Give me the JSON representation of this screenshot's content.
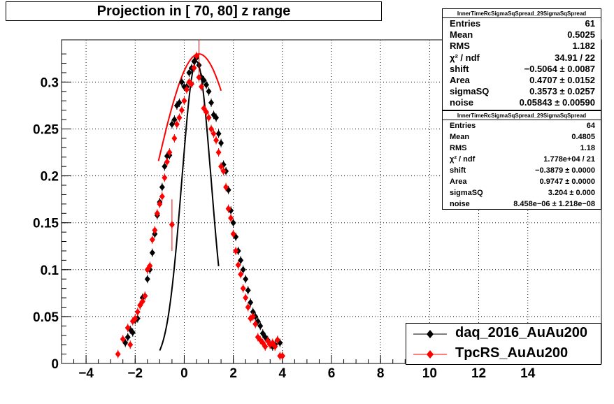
{
  "chart_data": {
    "type": "scatter",
    "title": "Projection in [  70,  80] z range",
    "xlim": [
      -5,
      17
    ],
    "ylim": [
      0,
      0.345
    ],
    "x_ticks": [
      -4,
      -2,
      0,
      2,
      4,
      6,
      8,
      10,
      12,
      14
    ],
    "x_tick_labels": [
      "−4",
      "−2",
      "0",
      "2",
      "4",
      "6",
      "8",
      "10",
      "12",
      "14"
    ],
    "y_ticks": [
      0,
      0.05,
      0.1,
      0.15,
      0.2,
      0.25,
      0.3
    ],
    "y_tick_labels": [
      "0",
      "0.05",
      "0.1",
      "0.15",
      "0.2",
      "0.25",
      "0.3"
    ],
    "grid": true,
    "legend_position": "bottom-right",
    "series": [
      {
        "name": "daq_2016_AuAu200",
        "color": "#000000",
        "marker": "diamond",
        "x": [
          -2.4,
          -2.3,
          -2.2,
          -2.1,
          -2.0,
          -1.9,
          -1.8,
          -1.7,
          -1.6,
          -1.5,
          -1.4,
          -1.3,
          -1.2,
          -1.1,
          -1.0,
          -0.9,
          -0.8,
          -0.7,
          -0.6,
          -0.5,
          -0.4,
          -0.3,
          -0.2,
          -0.1,
          0.0,
          0.1,
          0.2,
          0.3,
          0.4,
          0.5,
          0.6,
          0.7,
          0.8,
          0.9,
          1.0,
          1.1,
          1.2,
          1.3,
          1.4,
          1.5,
          1.6,
          1.7,
          1.8,
          1.9,
          2.0,
          2.1,
          2.2,
          2.3,
          2.4,
          2.5,
          2.6,
          2.7,
          2.8,
          2.9,
          3.0,
          3.1,
          3.2,
          3.3,
          3.4,
          3.5,
          3.6,
          3.7,
          3.8,
          3.9,
          4.0
        ],
        "y": [
          0.022,
          0.028,
          0.036,
          0.033,
          0.046,
          0.048,
          0.062,
          0.07,
          0.072,
          0.09,
          0.1,
          0.118,
          0.138,
          0.158,
          0.172,
          0.188,
          0.21,
          0.221,
          0.222,
          0.255,
          0.26,
          0.275,
          0.278,
          0.3,
          0.295,
          0.295,
          0.31,
          0.315,
          0.322,
          0.326,
          0.318,
          0.305,
          0.302,
          0.297,
          0.29,
          0.278,
          0.265,
          0.262,
          0.245,
          0.235,
          0.212,
          0.205,
          0.185,
          0.163,
          0.15,
          0.135,
          0.12,
          0.11,
          0.1,
          0.09,
          0.078,
          0.065,
          0.055,
          0.05,
          0.045,
          0.04,
          0.032,
          0.028,
          0.025,
          0.02,
          0.018,
          0.02,
          0.025,
          0.022,
          0.008
        ],
        "fit_curve": {
          "shift": -0.5064,
          "area": 0.4707,
          "sigmaSQ": 0.3573,
          "noise": 0.05843,
          "x_range": [
            -1.0,
            1.4
          ]
        }
      },
      {
        "name": "TpcRS_AuAu200",
        "color": "#ff0000",
        "marker": "diamond",
        "x": [
          -2.7,
          -2.5,
          -2.3,
          -2.2,
          -2.1,
          -2.0,
          -1.9,
          -1.8,
          -1.7,
          -1.6,
          -1.5,
          -1.4,
          -1.3,
          -1.2,
          -1.1,
          -1.0,
          -0.9,
          -0.8,
          -0.7,
          -0.6,
          -0.5,
          -0.4,
          -0.3,
          -0.2,
          -0.1,
          0.0,
          0.1,
          0.2,
          0.3,
          0.4,
          0.5,
          0.6,
          0.7,
          0.8,
          0.9,
          1.0,
          1.1,
          1.2,
          1.3,
          1.4,
          1.5,
          1.6,
          1.7,
          1.8,
          1.9,
          2.0,
          2.1,
          2.2,
          2.3,
          2.4,
          2.5,
          2.6,
          2.7,
          2.8,
          2.9,
          3.0,
          3.1,
          3.2,
          3.3,
          3.4,
          3.5,
          3.6,
          3.7,
          3.8,
          3.9,
          4.0
        ],
        "y": [
          0.01,
          0.026,
          0.038,
          0.02,
          0.045,
          0.048,
          0.055,
          0.062,
          0.066,
          0.072,
          0.1,
          0.104,
          0.132,
          0.142,
          0.16,
          0.17,
          0.178,
          0.198,
          0.215,
          0.225,
          0.148,
          0.24,
          0.255,
          0.262,
          0.27,
          0.28,
          0.292,
          0.3,
          0.298,
          0.315,
          0.328,
          0.305,
          0.295,
          0.272,
          0.268,
          0.262,
          0.25,
          0.245,
          0.238,
          0.225,
          0.21,
          0.205,
          0.188,
          0.165,
          0.155,
          0.138,
          0.12,
          0.105,
          0.095,
          0.08,
          0.07,
          0.06,
          0.048,
          0.05,
          0.042,
          0.028,
          0.025,
          0.022,
          0.018,
          0.024,
          0.02,
          0.022,
          0.018,
          0.025,
          0.008,
          0.008
        ],
        "fit_curve": {
          "shift": -0.3879,
          "area": 0.9747,
          "sigmaSQ": 3.204,
          "noise": 8.458e-06,
          "x_range": [
            -1.05,
            1.5
          ]
        }
      }
    ]
  },
  "stats_boxes": [
    {
      "header": "InnerTimeRcSigmaSqSpread_29SigmaSqSpread",
      "rows": [
        {
          "label": "Entries",
          "value": "61"
        },
        {
          "label": "Mean",
          "value": "0.5025"
        },
        {
          "label": "RMS",
          "value": "1.182"
        },
        {
          "label": "χ² / ndf",
          "value": "34.91 / 22"
        },
        {
          "label": "shift",
          "value": "−0.5064 ± 0.0087"
        },
        {
          "label": "Area",
          "value": "0.4707 ± 0.0152"
        },
        {
          "label": "sigmaSQ",
          "value": "0.3573 ± 0.0257"
        },
        {
          "label": "noise",
          "value": "0.05843 ± 0.00590"
        }
      ]
    },
    {
      "header": "InnerTimeRcSigmaSqSpread_29SigmaSqSpread",
      "rows": [
        {
          "label": "Entries",
          "value": "64"
        },
        {
          "label": "Mean",
          "value": "0.4805"
        },
        {
          "label": "RMS",
          "value": "1.18"
        },
        {
          "label": "χ² / ndf",
          "value": "1.778e+04 / 21"
        },
        {
          "label": "shift",
          "value": "−0.3879 ± 0.0000"
        },
        {
          "label": "Area",
          "value": "0.9747 ± 0.0000"
        },
        {
          "label": "sigmaSQ",
          "value": "3.204 ± 0.000"
        },
        {
          "label": "noise",
          "value": "8.458e−06 ± 1.218e−08"
        }
      ]
    }
  ]
}
